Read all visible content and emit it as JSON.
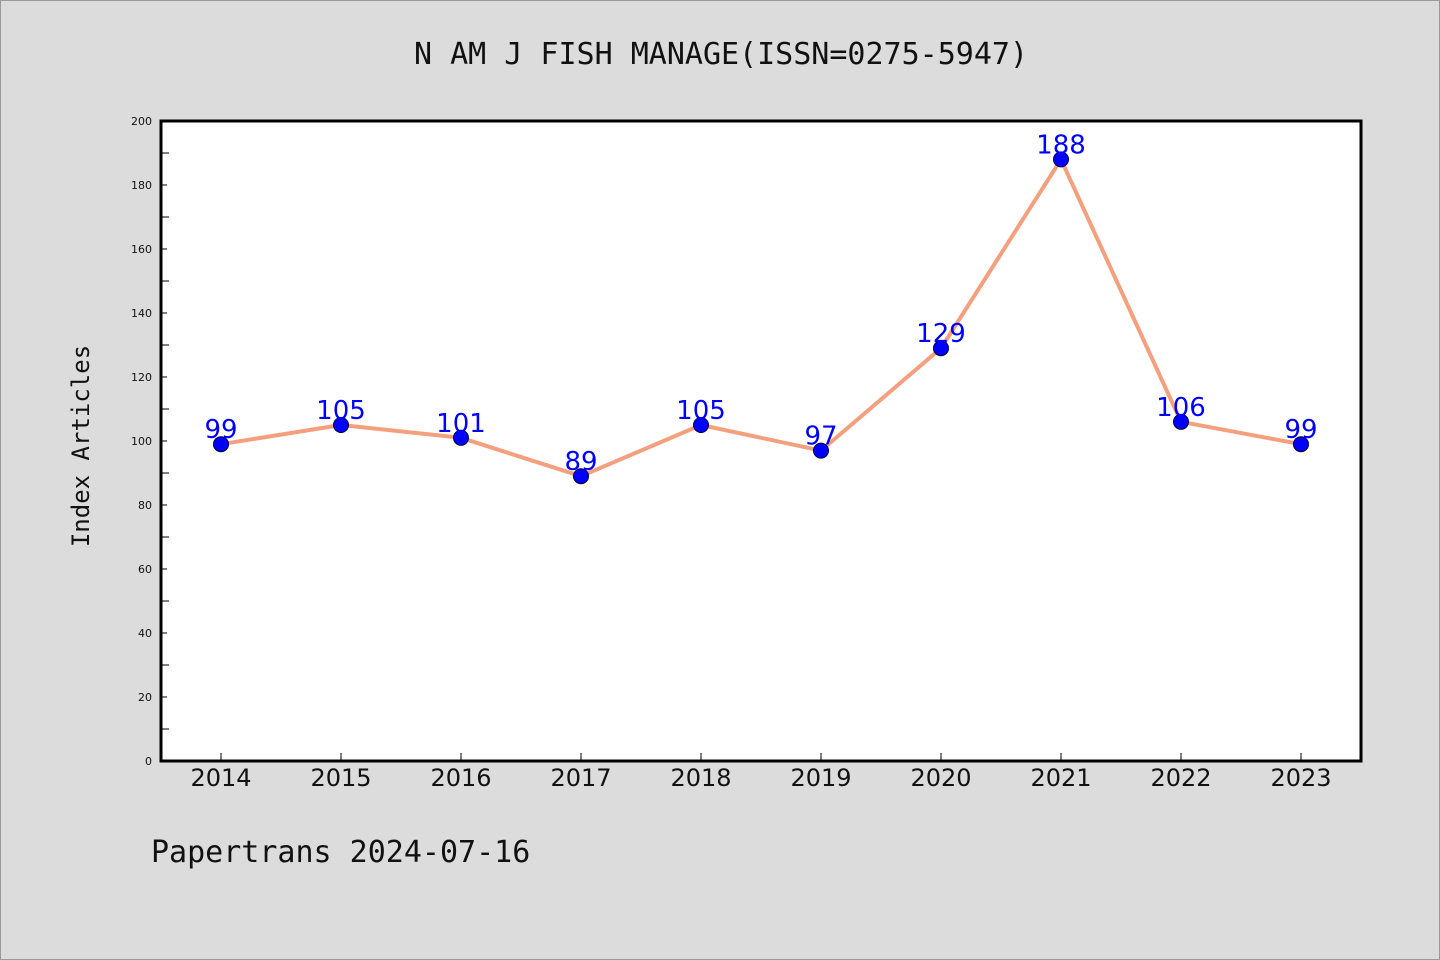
{
  "chart_data": {
    "type": "line",
    "title": "N AM J FISH MANAGE(ISSN=0275-5947)",
    "xlabel": "",
    "ylabel": "Index Articles",
    "categories": [
      "2014",
      "2015",
      "2016",
      "2017",
      "2018",
      "2019",
      "2020",
      "2021",
      "2022",
      "2023"
    ],
    "series": [
      {
        "values": [
          99,
          105,
          101,
          89,
          105,
          97,
          129,
          188,
          106,
          99
        ]
      }
    ],
    "ylim": [
      0,
      200
    ],
    "yticks": [
      0,
      20,
      40,
      60,
      80,
      100,
      120,
      140,
      160,
      180,
      200
    ],
    "grid": false,
    "legend": "none",
    "line_color": "#f4a07e",
    "marker_color": "#0000ff",
    "label_color": "#0000ff"
  },
  "footer": {
    "note": "Papertrans 2024-07-16"
  }
}
